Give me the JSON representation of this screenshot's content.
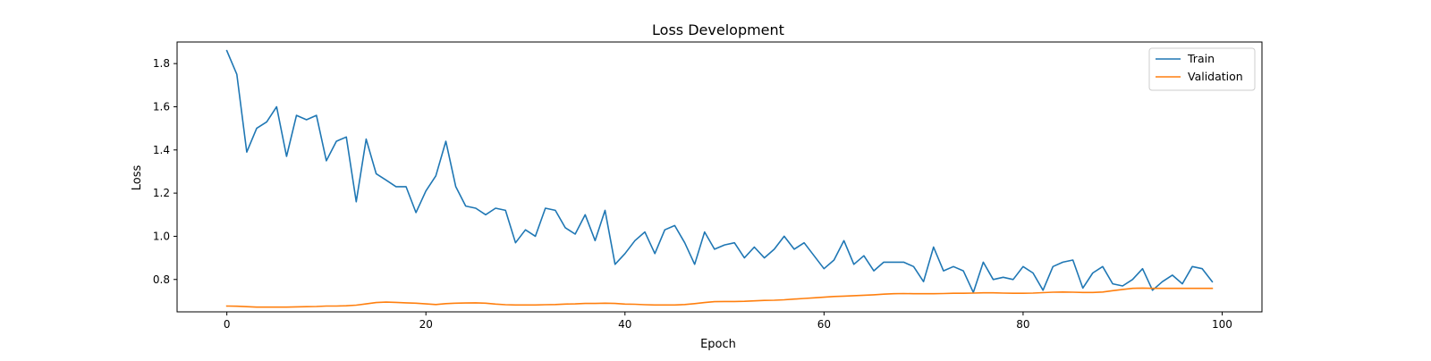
{
  "chart_data": {
    "type": "line",
    "title": "Loss Development",
    "xlabel": "Epoch",
    "ylabel": "Loss",
    "xlim": [
      -5,
      104
    ],
    "ylim": [
      0.65,
      1.9
    ],
    "xticks": [
      0,
      20,
      40,
      60,
      80,
      100
    ],
    "yticks": [
      0.8,
      1.0,
      1.2,
      1.4,
      1.6,
      1.8
    ],
    "grid": false,
    "legend_position": "upper right",
    "x": [
      0,
      1,
      2,
      3,
      4,
      5,
      6,
      7,
      8,
      9,
      10,
      11,
      12,
      13,
      14,
      15,
      16,
      17,
      18,
      19,
      20,
      21,
      22,
      23,
      24,
      25,
      26,
      27,
      28,
      29,
      30,
      31,
      32,
      33,
      34,
      35,
      36,
      37,
      38,
      39,
      40,
      41,
      42,
      43,
      44,
      45,
      46,
      47,
      48,
      49,
      50,
      51,
      52,
      53,
      54,
      55,
      56,
      57,
      58,
      59,
      60,
      61,
      62,
      63,
      64,
      65,
      66,
      67,
      68,
      69,
      70,
      71,
      72,
      73,
      74,
      75,
      76,
      77,
      78,
      79,
      80,
      81,
      82,
      83,
      84,
      85,
      86,
      87,
      88,
      89,
      90,
      91,
      92,
      93,
      94,
      95,
      96,
      97,
      98,
      99
    ],
    "series": [
      {
        "name": "Train",
        "color": "#1f77b4",
        "values": [
          1.86,
          1.75,
          1.39,
          1.5,
          1.53,
          1.6,
          1.37,
          1.56,
          1.54,
          1.56,
          1.35,
          1.44,
          1.46,
          1.16,
          1.45,
          1.29,
          1.26,
          1.23,
          1.23,
          1.11,
          1.21,
          1.28,
          1.44,
          1.23,
          1.14,
          1.13,
          1.1,
          1.13,
          1.12,
          0.97,
          1.03,
          1.0,
          1.13,
          1.12,
          1.04,
          1.01,
          1.1,
          0.98,
          1.12,
          0.87,
          0.92,
          0.98,
          1.02,
          0.92,
          1.03,
          1.05,
          0.97,
          0.87,
          1.02,
          0.94,
          0.96,
          0.97,
          0.9,
          0.95,
          0.9,
          0.94,
          1.0,
          0.94,
          0.97,
          0.91,
          0.85,
          0.89,
          0.98,
          0.87,
          0.91,
          0.84,
          0.88,
          0.88,
          0.88,
          0.86,
          0.79,
          0.95,
          0.84,
          0.86,
          0.84,
          0.74,
          0.88,
          0.8,
          0.81,
          0.8,
          0.86,
          0.83,
          0.75,
          0.86,
          0.88,
          0.89,
          0.76,
          0.83,
          0.86,
          0.78,
          0.77,
          0.8,
          0.85,
          0.75,
          0.79,
          0.82,
          0.78,
          0.86,
          0.85,
          0.79
        ]
      },
      {
        "name": "Validation",
        "color": "#ff7f0e",
        "values": [
          0.677,
          0.676,
          0.674,
          0.672,
          0.672,
          0.672,
          0.672,
          0.673,
          0.674,
          0.675,
          0.677,
          0.677,
          0.678,
          0.681,
          0.687,
          0.693,
          0.695,
          0.694,
          0.692,
          0.69,
          0.687,
          0.684,
          0.688,
          0.69,
          0.691,
          0.692,
          0.69,
          0.686,
          0.683,
          0.682,
          0.682,
          0.682,
          0.683,
          0.684,
          0.686,
          0.687,
          0.689,
          0.689,
          0.69,
          0.689,
          0.686,
          0.685,
          0.683,
          0.682,
          0.682,
          0.682,
          0.684,
          0.688,
          0.693,
          0.697,
          0.698,
          0.698,
          0.699,
          0.701,
          0.703,
          0.704,
          0.706,
          0.709,
          0.712,
          0.715,
          0.718,
          0.721,
          0.723,
          0.725,
          0.727,
          0.729,
          0.732,
          0.734,
          0.735,
          0.734,
          0.734,
          0.734,
          0.735,
          0.736,
          0.736,
          0.737,
          0.738,
          0.738,
          0.737,
          0.736,
          0.736,
          0.737,
          0.739,
          0.741,
          0.742,
          0.741,
          0.74,
          0.74,
          0.742,
          0.748,
          0.754,
          0.759,
          0.76,
          0.759,
          0.759,
          0.759,
          0.759,
          0.759,
          0.759,
          0.759
        ]
      }
    ]
  }
}
